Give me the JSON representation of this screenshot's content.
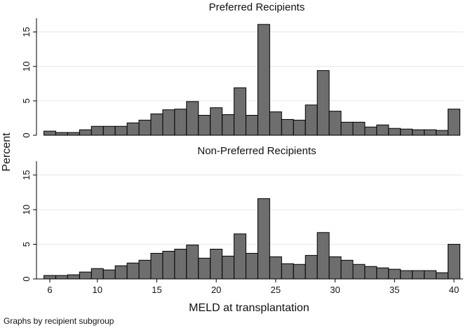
{
  "chart_data": {
    "type": "bar",
    "subtype": "histogram-by-group",
    "ylabel": "Percent",
    "xlabel": "MELD at transplantation",
    "note": "Graphs by recipient subgroup",
    "x_range": [
      6,
      40
    ],
    "x_ticks": [
      6,
      10,
      15,
      20,
      25,
      30,
      35,
      40
    ],
    "ylim": [
      0,
      17
    ],
    "y_ticks": [
      0,
      5,
      10,
      15
    ],
    "grid": true,
    "bar_color": "#6e6e6e",
    "panels": [
      {
        "title": "Preferred Recipients",
        "bins": [
          {
            "x": 6,
            "value": 0.6
          },
          {
            "x": 7,
            "value": 0.4
          },
          {
            "x": 8,
            "value": 0.4
          },
          {
            "x": 9,
            "value": 0.8
          },
          {
            "x": 10,
            "value": 1.3
          },
          {
            "x": 11,
            "value": 1.3
          },
          {
            "x": 12,
            "value": 1.3
          },
          {
            "x": 13,
            "value": 1.8
          },
          {
            "x": 14,
            "value": 2.2
          },
          {
            "x": 15,
            "value": 3.1
          },
          {
            "x": 16,
            "value": 3.7
          },
          {
            "x": 17,
            "value": 3.8
          },
          {
            "x": 18,
            "value": 4.9
          },
          {
            "x": 19,
            "value": 2.9
          },
          {
            "x": 20,
            "value": 4.0
          },
          {
            "x": 21,
            "value": 3.0
          },
          {
            "x": 22,
            "value": 6.9
          },
          {
            "x": 23,
            "value": 2.9
          },
          {
            "x": 24,
            "value": 16.1
          },
          {
            "x": 25,
            "value": 3.4
          },
          {
            "x": 26,
            "value": 2.3
          },
          {
            "x": 27,
            "value": 2.2
          },
          {
            "x": 28,
            "value": 4.4
          },
          {
            "x": 29,
            "value": 9.4
          },
          {
            "x": 30,
            "value": 3.5
          },
          {
            "x": 31,
            "value": 1.9
          },
          {
            "x": 32,
            "value": 1.9
          },
          {
            "x": 33,
            "value": 1.2
          },
          {
            "x": 34,
            "value": 1.5
          },
          {
            "x": 35,
            "value": 1.0
          },
          {
            "x": 36,
            "value": 0.9
          },
          {
            "x": 37,
            "value": 0.8
          },
          {
            "x": 38,
            "value": 0.8
          },
          {
            "x": 39,
            "value": 0.7
          },
          {
            "x": 40,
            "value": 3.8
          }
        ]
      },
      {
        "title": "Non-Preferred Recipients",
        "bins": [
          {
            "x": 6,
            "value": 0.5
          },
          {
            "x": 7,
            "value": 0.5
          },
          {
            "x": 8,
            "value": 0.6
          },
          {
            "x": 9,
            "value": 1.0
          },
          {
            "x": 10,
            "value": 1.5
          },
          {
            "x": 11,
            "value": 1.3
          },
          {
            "x": 12,
            "value": 1.9
          },
          {
            "x": 13,
            "value": 2.3
          },
          {
            "x": 14,
            "value": 2.7
          },
          {
            "x": 15,
            "value": 3.7
          },
          {
            "x": 16,
            "value": 4.0
          },
          {
            "x": 17,
            "value": 4.3
          },
          {
            "x": 18,
            "value": 4.9
          },
          {
            "x": 19,
            "value": 3.0
          },
          {
            "x": 20,
            "value": 4.3
          },
          {
            "x": 21,
            "value": 3.3
          },
          {
            "x": 22,
            "value": 6.5
          },
          {
            "x": 23,
            "value": 3.7
          },
          {
            "x": 24,
            "value": 11.6
          },
          {
            "x": 25,
            "value": 3.2
          },
          {
            "x": 26,
            "value": 2.2
          },
          {
            "x": 27,
            "value": 2.1
          },
          {
            "x": 28,
            "value": 3.4
          },
          {
            "x": 29,
            "value": 6.7
          },
          {
            "x": 30,
            "value": 3.2
          },
          {
            "x": 31,
            "value": 2.7
          },
          {
            "x": 32,
            "value": 2.1
          },
          {
            "x": 33,
            "value": 1.8
          },
          {
            "x": 34,
            "value": 1.6
          },
          {
            "x": 35,
            "value": 1.4
          },
          {
            "x": 36,
            "value": 1.2
          },
          {
            "x": 37,
            "value": 1.2
          },
          {
            "x": 38,
            "value": 1.2
          },
          {
            "x": 39,
            "value": 0.9
          },
          {
            "x": 40,
            "value": 5.0
          }
        ]
      }
    ]
  }
}
